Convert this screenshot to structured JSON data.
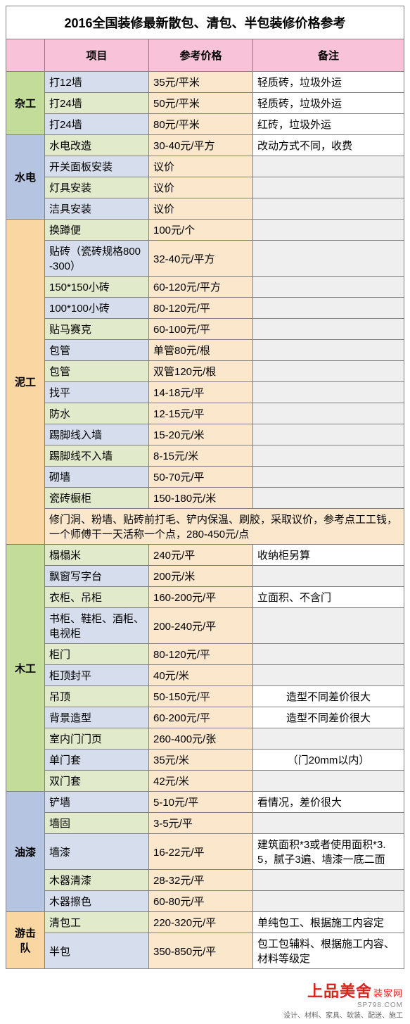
{
  "title": "2016全国装修最新散包、清包、半包装修价格参考",
  "headers": {
    "cat": "",
    "item": "项目",
    "price": "参考价格",
    "note": "备注"
  },
  "colors": {
    "header_bg": "#f8c3d8",
    "cat_green": "#c4dc9a",
    "cat_blue": "#b5c4e1",
    "cat_orange": "#fad6a3",
    "cell_green": "#e1eaca",
    "cell_blue": "#d6deed",
    "cell_orange": "#fbe7cc",
    "cell_grey": "#efefef",
    "border": "#808080"
  },
  "col_widths": {
    "cat": 55,
    "item": 148,
    "price": 148,
    "note": 200
  },
  "sections": [
    {
      "cat": "杂工",
      "cat_cls": "cat-grn",
      "rows": [
        {
          "item": "打12墙",
          "price": "35元/平米",
          "note": "轻质砖，垃圾外运",
          "alt": false
        },
        {
          "item": "打24墙",
          "price": "50元/平米",
          "note": "轻质砖，垃圾外运",
          "alt": true
        },
        {
          "item": "打24墙",
          "price": "80元/平米",
          "note": "红砖，垃圾外运",
          "alt": false
        }
      ]
    },
    {
      "cat": "水电",
      "cat_cls": "cat-blu",
      "rows": [
        {
          "item": "水电改造",
          "price": "30-40元/平方",
          "note": "改动方式不同，收费",
          "alt": true
        },
        {
          "item": "开关面板安装",
          "price": "议价",
          "note": "",
          "note_grey": true,
          "alt": false
        },
        {
          "item": "灯具安装",
          "price": "议价",
          "note": "",
          "note_grey": true,
          "alt": true
        },
        {
          "item": "洁具安装",
          "price": "议价",
          "note": "",
          "note_grey": true,
          "alt": false
        }
      ]
    },
    {
      "cat": "泥工",
      "cat_cls": "cat-orn",
      "rows": [
        {
          "item": "换蹲便",
          "price": "100元/个",
          "note": "",
          "note_grey": true,
          "alt": true
        },
        {
          "item": "贴砖（瓷砖规格800-300）",
          "price": "32-40元/平方",
          "note": "",
          "note_grey": true,
          "alt": false
        },
        {
          "item": "150*150小砖",
          "price": "60-120元/平方",
          "note": "",
          "note_grey": true,
          "alt": true
        },
        {
          "item": "100*100小砖",
          "price": "80-120元/平",
          "note": "",
          "note_grey": true,
          "alt": false
        },
        {
          "item": "贴马赛克",
          "price": "60-100元/平",
          "note": "",
          "note_grey": true,
          "alt": true
        },
        {
          "item": "包管",
          "price": "单管80元/根",
          "note": "",
          "note_grey": true,
          "alt": false
        },
        {
          "item": "包管",
          "price": "双管120元/根",
          "note": "",
          "note_grey": true,
          "alt": true
        },
        {
          "item": "找平",
          "price": "14-18元/平",
          "note": "",
          "note_grey": true,
          "alt": false
        },
        {
          "item": "防水",
          "price": "12-15元/平",
          "note": "",
          "note_grey": true,
          "alt": true
        },
        {
          "item": "踢脚线入墙",
          "price": "15-20元/米",
          "note": "",
          "note_grey": true,
          "alt": false
        },
        {
          "item": "踢脚线不入墙",
          "price": "8-15元/米",
          "note": "",
          "note_grey": true,
          "alt": true
        },
        {
          "item": "砌墙",
          "price": "50-70元/平",
          "note": "",
          "note_grey": true,
          "alt": false
        },
        {
          "item": "瓷砖橱柜",
          "price": "150-180元/米",
          "note": "",
          "note_grey": true,
          "alt": true
        }
      ],
      "span_note": "修门洞、粉墙、贴砖前打毛、铲内保温、刷胶，采取议价，参考点工工钱，一个师傅干一天活称一个点，280-450元/点"
    },
    {
      "cat": "木工",
      "cat_cls": "cat-grn",
      "rows": [
        {
          "item": "榻榻米",
          "price": "240元/平",
          "note": "收纳柜另算",
          "alt": true
        },
        {
          "item": "飘窗写字台",
          "price": "200元/米",
          "note": "",
          "note_grey": true,
          "alt": false
        },
        {
          "item": "衣柜、吊柜",
          "price": "160-200元/平",
          "note": "立面积、不含门",
          "alt": true
        },
        {
          "item": "书柜、鞋柜、酒柜、电视柜",
          "price": "200-240元/平",
          "note": "",
          "note_grey": true,
          "alt": false
        },
        {
          "item": "柜门",
          "price": "80-120元/平",
          "note": "",
          "note_grey": true,
          "alt": true
        },
        {
          "item": "柜顶封平",
          "price": "40元/米",
          "note": "",
          "note_grey": true,
          "alt": false
        },
        {
          "item": "吊顶",
          "price": "50-150元/平",
          "note": "造型不同差价很大",
          "note_center": true,
          "alt": true
        },
        {
          "item": "背景造型",
          "price": "60-200元/平",
          "note": "造型不同差价很大",
          "note_center": true,
          "alt": false
        },
        {
          "item": "室内门门页",
          "price": "260-400元/张",
          "note": "",
          "note_grey": true,
          "alt": true
        },
        {
          "item": "单门套",
          "price": "35元/米",
          "note": "（门20mm以内）",
          "note_center": true,
          "alt": false
        },
        {
          "item": "双门套",
          "price": "42元/米",
          "note": "",
          "note_grey": true,
          "alt": true
        }
      ]
    },
    {
      "cat": "油漆",
      "cat_cls": "cat-blu",
      "rows": [
        {
          "item": "铲墙",
          "price": "5-10元/平",
          "note": "看情况，差价很大",
          "alt": false
        },
        {
          "item": "墙固",
          "price": "3-5元/平",
          "note": "",
          "note_grey": true,
          "alt": true
        },
        {
          "item": "墙漆",
          "price": "16-22元/平",
          "note": "建筑面积*3或者使用面积*3.5，腻子3遍、墙漆一底二面",
          "alt": false
        },
        {
          "item": "木器清漆",
          "price": "28-32元/平",
          "note": "",
          "note_grey": true,
          "alt": true
        },
        {
          "item": "木器擦色",
          "price": "60-80元/平",
          "note": "",
          "note_grey": true,
          "alt": false
        }
      ]
    },
    {
      "cat": "游击队",
      "cat_cls": "cat-orn",
      "rows": [
        {
          "item": "清包工",
          "price": "220-320元/平",
          "note": "单纯包工、根据施工内容定",
          "alt": true
        },
        {
          "item": "半包",
          "price": "350-850元/平",
          "note": "包工包辅料、根据施工内容、材料等级定",
          "alt": false
        }
      ]
    }
  ],
  "footer": {
    "brand": "上品美舍",
    "sub": "装家网",
    "url": "SP798.COM",
    "tagline": "设计、材料、家具、软装、配送、施工"
  }
}
